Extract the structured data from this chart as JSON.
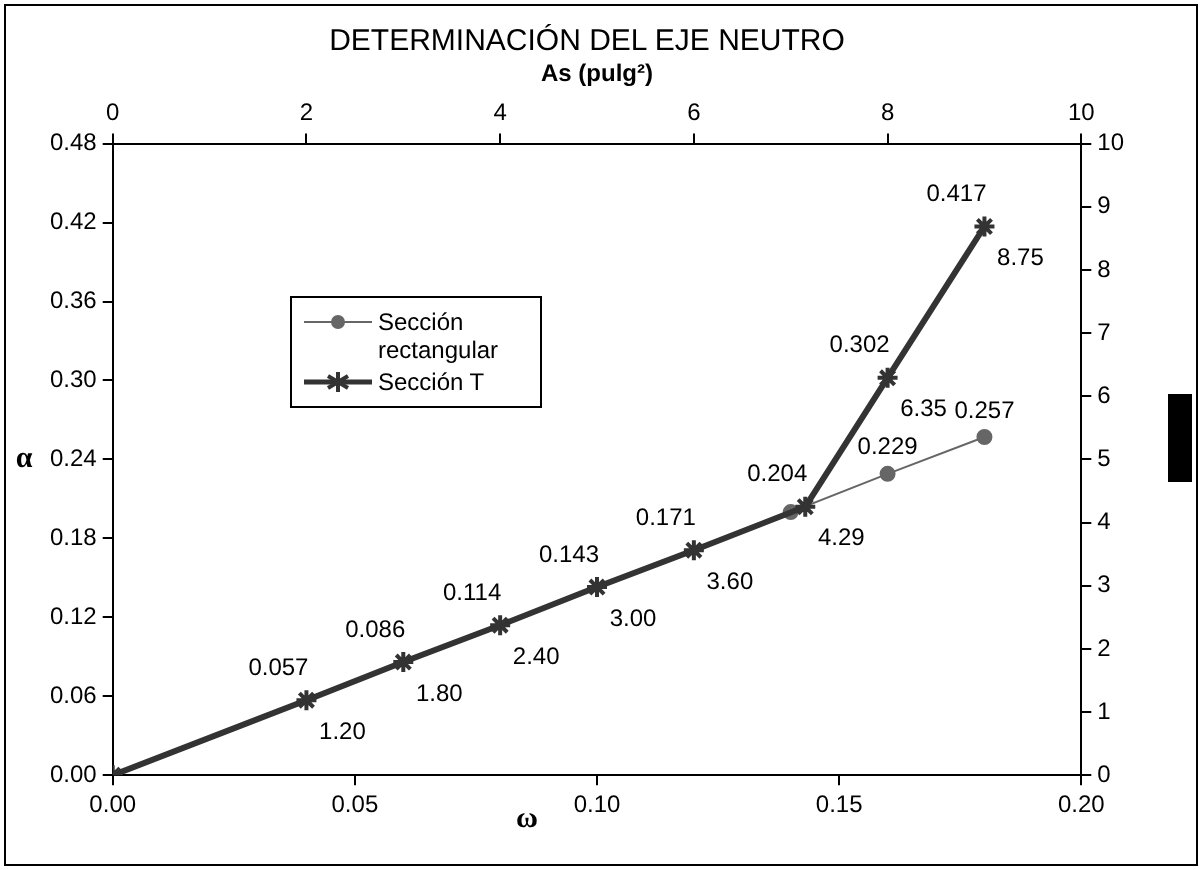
{
  "chart_data": {
    "type": "line",
    "title": "DETERMINACIÓN DEL EJE NEUTRO",
    "xlabel": "ω",
    "ylabel": "α",
    "x2label": "As (pulg²)",
    "xlim": [
      0,
      0.2
    ],
    "xticks": [
      {
        "value": 0,
        "label": "0.00"
      },
      {
        "value": 0.05,
        "label": "0.05"
      },
      {
        "value": 0.1,
        "label": "0.10"
      },
      {
        "value": 0.15,
        "label": "0.15"
      },
      {
        "value": 0.2,
        "label": "0.20"
      }
    ],
    "ylim": [
      0,
      0.48
    ],
    "yticks": [
      {
        "value": 0,
        "label": "0.00"
      },
      {
        "value": 0.06,
        "label": "0.06"
      },
      {
        "value": 0.12,
        "label": "0.12"
      },
      {
        "value": 0.18,
        "label": "0.18"
      },
      {
        "value": 0.24,
        "label": "0.24"
      },
      {
        "value": 0.3,
        "label": "0.30"
      },
      {
        "value": 0.36,
        "label": "0.36"
      },
      {
        "value": 0.42,
        "label": "0.42"
      },
      {
        "value": 0.48,
        "label": "0.48"
      }
    ],
    "x2lim": [
      0,
      10
    ],
    "x2ticks": [
      0,
      2,
      4,
      6,
      8,
      10
    ],
    "y2lim": [
      0,
      10
    ],
    "y2ticks": [
      0,
      1,
      2,
      3,
      4,
      5,
      6,
      7,
      8,
      9,
      10
    ],
    "grid": false,
    "legend": "top left",
    "series": [
      {
        "name": "Sección rectangular",
        "color": "#666666",
        "marker": "circle",
        "x": [
          0.14,
          0.16,
          0.18
        ],
        "values": [
          0.2,
          0.229,
          0.257
        ],
        "value_labels": [
          null,
          "0.229",
          "0.257"
        ]
      },
      {
        "name": "Sección T",
        "color": "#333333",
        "marker": "cross",
        "x": [
          0,
          0.04,
          0.06,
          0.08,
          0.1,
          0.12,
          0.143,
          0.16,
          0.18
        ],
        "values": [
          0,
          0.057,
          0.086,
          0.114,
          0.143,
          0.171,
          0.204,
          0.302,
          0.417
        ],
        "value_labels": [
          null,
          "0.057",
          "0.086",
          "0.114",
          "0.143",
          "0.171",
          "0.204",
          "0.302",
          "0.417"
        ]
      }
    ],
    "annotations": [
      {
        "text": "1.20",
        "x": 0.04,
        "y": 0.057
      },
      {
        "text": "1.80",
        "x": 0.06,
        "y": 0.086
      },
      {
        "text": "2.40",
        "x": 0.08,
        "y": 0.114
      },
      {
        "text": "3.00",
        "x": 0.1,
        "y": 0.143
      },
      {
        "text": "3.60",
        "x": 0.12,
        "y": 0.171
      },
      {
        "text": "4.29",
        "x": 0.143,
        "y": 0.204
      },
      {
        "text": "6.35",
        "x": 0.16,
        "y": 0.302
      },
      {
        "text": "8.75",
        "x": 0.18,
        "y": 0.417
      }
    ]
  }
}
